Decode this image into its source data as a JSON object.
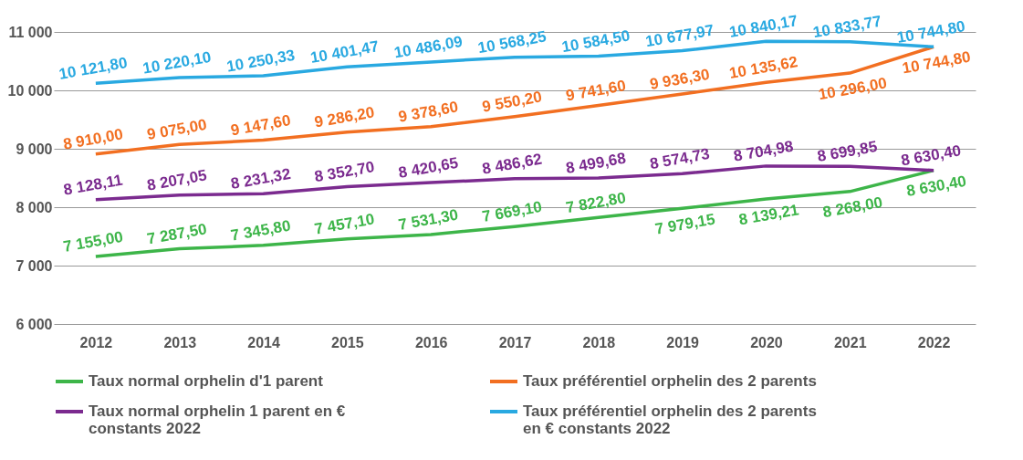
{
  "chart_data": {
    "type": "line",
    "categories": [
      "2012",
      "2013",
      "2014",
      "2015",
      "2016",
      "2017",
      "2018",
      "2019",
      "2020",
      "2021",
      "2022"
    ],
    "ylim": [
      6000,
      11000
    ],
    "yticks": [
      {
        "value": 6000,
        "label": "6 000"
      },
      {
        "value": 7000,
        "label": "7 000"
      },
      {
        "value": 8000,
        "label": "8 000"
      },
      {
        "value": 9000,
        "label": "9 000"
      },
      {
        "value": 10000,
        "label": "10 000"
      },
      {
        "value": 11000,
        "label": "11 000"
      }
    ],
    "grid": "y",
    "legend": "bottom",
    "marker": "none",
    "line_style": "solid",
    "series": [
      {
        "name": "Taux normal orphelin d'1 parent",
        "color": "#3db549",
        "values": [
          7155,
          7287.5,
          7345.8,
          7457.1,
          7531.3,
          7669.1,
          7822.8,
          7979.15,
          8139.21,
          8268,
          8630.4
        ],
        "value_labels": [
          "7 155,00",
          "7 287,50",
          "7 345,80",
          "7 457,10",
          "7 531,30",
          "7 669,10",
          "7 822,80",
          "7 979,15",
          "8 139,21",
          "8 268,00",
          "8 630,40"
        ]
      },
      {
        "name": "Taux préférentiel orphelin des 2 parents",
        "color": "#f26f21",
        "values": [
          8910,
          9075,
          9147.6,
          9286.2,
          9378.6,
          9550.2,
          9741.6,
          9936.3,
          10135.62,
          10296,
          10744.8
        ],
        "value_labels": [
          "8 910,00",
          "9 075,00",
          "9 147,60",
          "9 286,20",
          "9 378,60",
          "9 550,20",
          "9 741,60",
          "9 936,30",
          "10 135,62",
          "10 296,00",
          "10 744,80"
        ]
      },
      {
        "name": "Taux normal orphelin 1 parent en € constants 2022",
        "color": "#7b2b8f",
        "values": [
          8128.11,
          8207.05,
          8231.32,
          8352.7,
          8420.65,
          8486.62,
          8499.68,
          8574.73,
          8704.98,
          8699.85,
          8630.4
        ],
        "value_labels": [
          "8 128,11",
          "8 207,05",
          "8 231,32",
          "8 352,70",
          "8 420,65",
          "8 486,62",
          "8 499,68",
          "8 574,73",
          "8 704,98",
          "8 699,85",
          "8 630,40"
        ]
      },
      {
        "name": "Taux préférentiel orphelin des 2 parents en € constants 2022",
        "color": "#29a9e1",
        "values": [
          10121.8,
          10220.1,
          10250.33,
          10401.47,
          10486.09,
          10568.25,
          10584.5,
          10677.97,
          10840.17,
          10833.77,
          10744.8
        ],
        "value_labels": [
          "10 121,80",
          "10 220,10",
          "10 250,33",
          "10 401,47",
          "10 486,09",
          "10 568,25",
          "10 584,50",
          "10 677,97",
          "10 840,17",
          "10 833,77",
          "10 744,80"
        ]
      }
    ]
  }
}
